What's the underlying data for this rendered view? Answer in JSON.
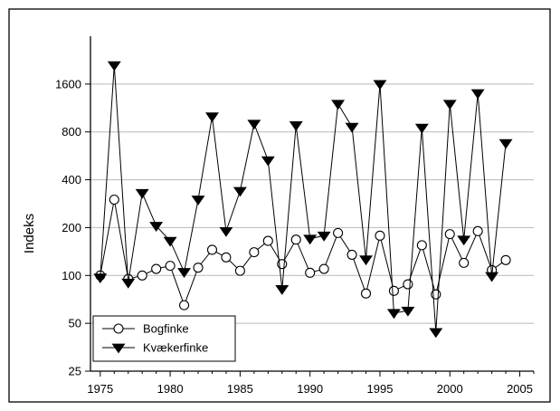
{
  "chart_data": {
    "type": "line",
    "title": "",
    "xlabel": "",
    "ylabel": "Indeks",
    "y_scale": "log2",
    "xlim": [
      1974.3,
      2006
    ],
    "ylim": [
      25,
      3200
    ],
    "x_ticks": [
      1975,
      1980,
      1985,
      1990,
      1995,
      2000,
      2005
    ],
    "y_ticks": [
      25,
      50,
      100,
      200,
      400,
      800,
      1600
    ],
    "grid": "horizontal",
    "legend": "bottom-left",
    "series": [
      {
        "name": "Bogfinke",
        "marker": "open-circle",
        "x": [
          1975,
          1976,
          1977,
          1978,
          1979,
          1980,
          1981,
          1982,
          1983,
          1984,
          1985,
          1986,
          1987,
          1988,
          1989,
          1990,
          1991,
          1992,
          1993,
          1994,
          1995,
          1996,
          1997,
          1998,
          1999,
          2000,
          2001,
          2002,
          2003,
          2004
        ],
        "values": [
          100,
          300,
          95,
          100,
          110,
          115,
          65,
          112,
          145,
          130,
          107,
          140,
          165,
          118,
          168,
          104,
          110,
          185,
          135,
          77,
          178,
          80,
          88,
          155,
          76,
          182,
          120,
          190,
          108,
          125
        ]
      },
      {
        "name": "Kvækerfinke",
        "marker": "filled-triangle-down",
        "x": [
          1975,
          1976,
          1977,
          1978,
          1979,
          1980,
          1981,
          1982,
          1983,
          1984,
          1985,
          1986,
          1987,
          1988,
          1989,
          1990,
          1991,
          1992,
          1993,
          1994,
          1995,
          1996,
          1997,
          1998,
          1999,
          2000,
          2001,
          2002,
          2003,
          2004
        ],
        "values": [
          97,
          2100,
          90,
          330,
          205,
          165,
          105,
          300,
          1000,
          190,
          340,
          900,
          530,
          82,
          880,
          170,
          178,
          1200,
          860,
          126,
          1600,
          58,
          60,
          850,
          44,
          1200,
          168,
          1400,
          99,
          680
        ]
      }
    ]
  }
}
